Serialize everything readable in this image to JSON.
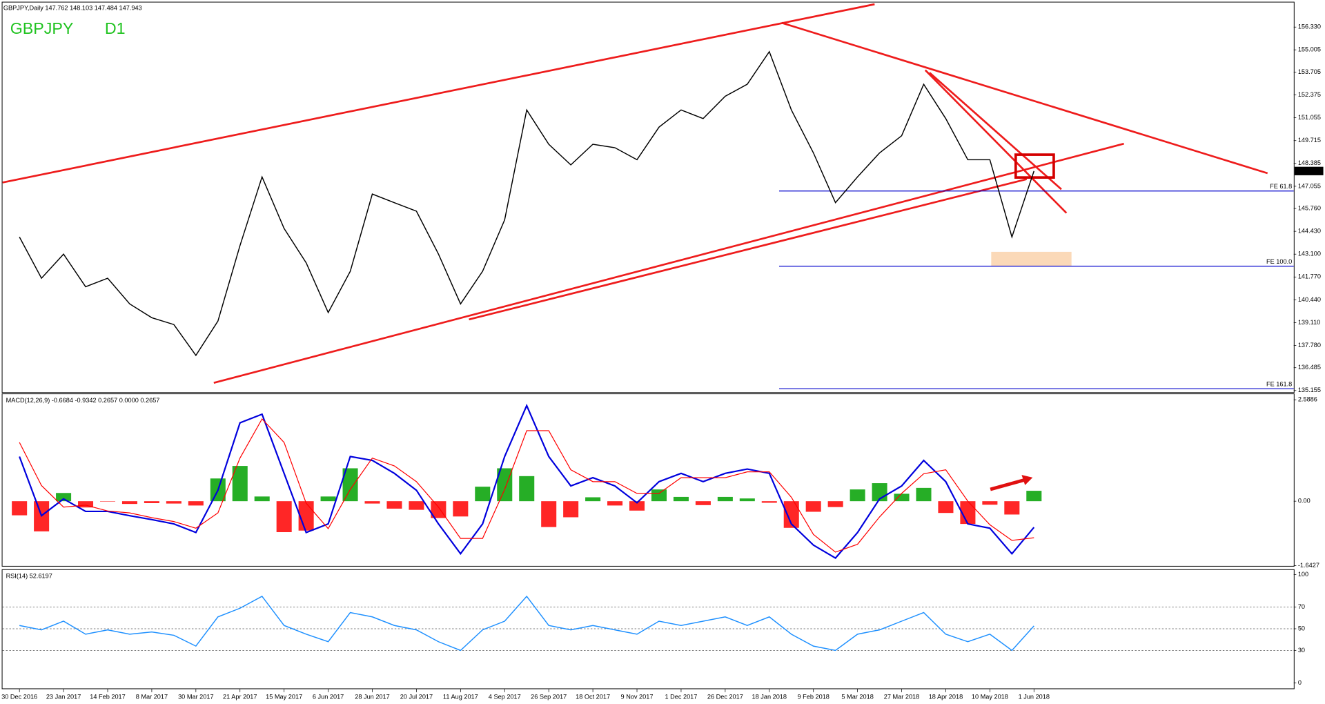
{
  "chart_data": [
    {
      "type": "line",
      "title": "GBPJPY,Daily  147.762 148.103 147.484 147.943",
      "symbol": "GBPJPY",
      "timeframe": "D1",
      "categories": [
        "30 Dec 2016",
        null,
        "23 Jan 2017",
        null,
        "14 Feb 2017",
        null,
        "8 Mar 2017",
        null,
        "30 Mar 2017",
        null,
        "21 Apr 2017",
        null,
        "15 May 2017",
        null,
        "6 Jun 2017",
        null,
        "28 Jun 2017",
        null,
        "20 Jul 2017",
        null,
        "11 Aug 2017",
        null,
        "4 Sep 2017",
        null,
        "26 Sep 2017",
        null,
        "18 Oct 2017",
        null,
        "9 Nov 2017",
        null,
        "1 Dec 2017",
        null,
        "26 Dec 2017",
        null,
        "18 Jan 2018",
        null,
        "9 Feb 2018",
        null,
        "5 Mar 2018",
        null,
        "27 Mar 2018",
        null,
        "18 Apr 2018",
        null,
        "10 May 2018",
        null,
        "1 Jun 2018"
      ],
      "values": [
        144.1,
        141.7,
        143.1,
        141.2,
        141.7,
        140.2,
        139.4,
        139.0,
        137.2,
        139.2,
        143.6,
        147.6,
        144.6,
        142.6,
        139.7,
        142.1,
        146.6,
        146.1,
        145.6,
        143.1,
        140.2,
        142.1,
        145.1,
        151.5,
        149.5,
        148.3,
        149.5,
        149.3,
        148.6,
        150.5,
        151.5,
        151.0,
        152.3,
        153.0,
        154.9,
        151.5,
        149.0,
        146.1,
        147.6,
        149.0,
        150.0,
        153.0,
        151.0,
        148.6,
        148.6,
        144.1,
        147.943
      ],
      "color": "#000000",
      "ylim": [
        135.06,
        157.76
      ],
      "yticks": [
        {
          "value": 156.33,
          "label": "156.330"
        },
        {
          "value": 155.005,
          "label": "155.005"
        },
        {
          "value": 153.705,
          "label": "153.705"
        },
        {
          "value": 152.375,
          "label": "152.375"
        },
        {
          "value": 151.055,
          "label": "151.055"
        },
        {
          "value": 149.715,
          "label": "149.715"
        },
        {
          "value": 148.385,
          "label": "148.385"
        },
        {
          "value": 147.055,
          "label": "147.055"
        },
        {
          "value": 145.76,
          "label": "145.760"
        },
        {
          "value": 144.43,
          "label": "144.430"
        },
        {
          "value": 143.1,
          "label": "143.100"
        },
        {
          "value": 141.77,
          "label": "141.770"
        },
        {
          "value": 140.44,
          "label": "140.440"
        },
        {
          "value": 139.11,
          "label": "139.110"
        },
        {
          "value": 137.78,
          "label": "137.780"
        },
        {
          "value": 136.485,
          "label": "136.485"
        },
        {
          "value": 135.155,
          "label": "135.155"
        }
      ],
      "annotations": [
        {
          "label": "FE 61.8",
          "value": 146.78
        },
        {
          "label": "FE 100.0",
          "value": 142.4
        },
        {
          "label": "FE 161.8",
          "value": 135.26
        }
      ],
      "annotation_color": "#0000cc"
    },
    {
      "type": "macd",
      "title": "MACD(12,26,9) -0.6684 -0.9342 0.2657 0.0000 0.2657",
      "series": [
        {
          "style": "bar",
          "color": "#00a000",
          "negative_color": "#ff0000",
          "values": [
            -0.36,
            -0.77,
            0.21,
            -0.16,
            -0.01,
            -0.07,
            -0.05,
            -0.06,
            -0.11,
            0.58,
            0.9,
            0.12,
            -0.79,
            -0.75,
            0.12,
            0.84,
            -0.06,
            -0.19,
            -0.22,
            -0.43,
            -0.39,
            0.37,
            0.84,
            0.64,
            -0.66,
            -0.41,
            0.1,
            -0.11,
            -0.24,
            0.3,
            0.11,
            -0.1,
            0.11,
            0.07,
            -0.04,
            -0.68,
            -0.27,
            -0.15,
            0.3,
            0.46,
            0.19,
            0.34,
            -0.3,
            -0.58,
            -0.09,
            -0.34,
            0.2657
          ]
        },
        {
          "style": "line",
          "color": "#0000dd",
          "values": [
            1.14,
            -0.37,
            0.06,
            -0.26,
            -0.26,
            -0.37,
            -0.47,
            -0.58,
            -0.8,
            0.28,
            2.0,
            2.22,
            0.71,
            -0.8,
            -0.58,
            1.14,
            1.04,
            0.71,
            0.28,
            -0.58,
            -1.34,
            -0.58,
            1.14,
            2.44,
            1.14,
            0.39,
            0.6,
            0.39,
            -0.04,
            0.5,
            0.71,
            0.5,
            0.71,
            0.82,
            0.71,
            -0.58,
            -1.12,
            -1.45,
            -0.8,
            0.06,
            0.39,
            1.04,
            0.5,
            -0.58,
            -0.69,
            -1.34,
            -0.6684
          ]
        },
        {
          "style": "line",
          "color": "#ff0000",
          "values": [
            1.5,
            0.4,
            -0.15,
            -0.1,
            -0.25,
            -0.3,
            -0.42,
            -0.52,
            -0.69,
            -0.3,
            1.1,
            2.1,
            1.5,
            -0.05,
            -0.7,
            0.3,
            1.1,
            0.9,
            0.5,
            -0.15,
            -0.95,
            -0.95,
            0.3,
            1.8,
            1.8,
            0.8,
            0.5,
            0.5,
            0.2,
            0.2,
            0.6,
            0.6,
            0.6,
            0.75,
            0.75,
            0.1,
            -0.85,
            -1.3,
            -1.1,
            -0.4,
            0.2,
            0.7,
            0.8,
            0.0,
            -0.6,
            -1.0,
            -0.9342
          ]
        }
      ],
      "ylim": [
        -1.66,
        2.74
      ],
      "yticks": [
        2.5886,
        {
          "value": 0,
          "label": "0.00"
        },
        -1.6427
      ]
    },
    {
      "type": "line",
      "title": "RSI(14) 52.6197",
      "color": "#1e90ff",
      "values": [
        53,
        49,
        57,
        45,
        49,
        45,
        47,
        44,
        34,
        61,
        69,
        80,
        53,
        45,
        38,
        65,
        61,
        53,
        49,
        38,
        30,
        49,
        57,
        80,
        53,
        49,
        53,
        49,
        45,
        57,
        53,
        57,
        61,
        53,
        61,
        45,
        34,
        30,
        45,
        49,
        57,
        65,
        45,
        38,
        45,
        30,
        52.6197
      ],
      "ylim": [
        -5.5,
        103.9
      ],
      "yticks": [
        0,
        30,
        50,
        70,
        100
      ],
      "levels": [
        30,
        50,
        70
      ]
    }
  ]
}
